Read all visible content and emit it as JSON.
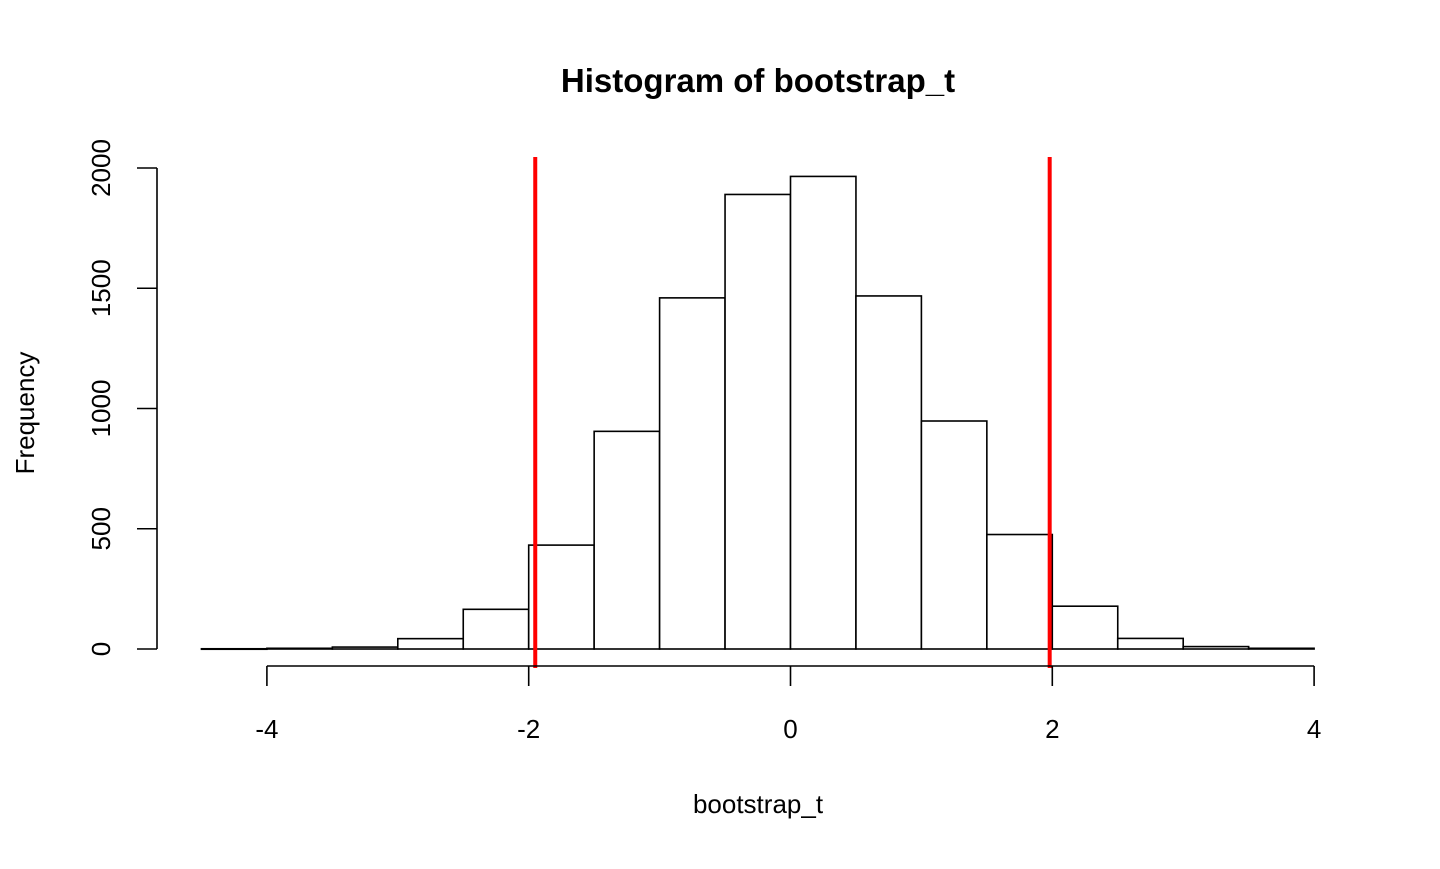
{
  "chart_data": {
    "type": "histogram",
    "title": "Histogram of bootstrap_t",
    "xlabel": "bootstrap_t",
    "ylabel": "Frequency",
    "xlim": [
      -4.5,
      4
    ],
    "ylim": [
      0,
      2000
    ],
    "x_ticks": [
      -4,
      -2,
      0,
      2,
      4
    ],
    "x_tick_labels": [
      "-4",
      "-2",
      "0",
      "2",
      "4"
    ],
    "y_ticks": [
      0,
      500,
      1000,
      1500,
      2000
    ],
    "y_tick_labels": [
      "0",
      "500",
      "1000",
      "1500",
      "2000"
    ],
    "bins": [
      {
        "x0": -4.5,
        "x1": -4.0,
        "count": 1
      },
      {
        "x0": -4.0,
        "x1": -3.5,
        "count": 3
      },
      {
        "x0": -3.5,
        "x1": -3.0,
        "count": 8
      },
      {
        "x0": -3.0,
        "x1": -2.5,
        "count": 43
      },
      {
        "x0": -2.5,
        "x1": -2.0,
        "count": 165
      },
      {
        "x0": -2.0,
        "x1": -1.5,
        "count": 432
      },
      {
        "x0": -1.5,
        "x1": -1.0,
        "count": 905
      },
      {
        "x0": -1.0,
        "x1": -0.5,
        "count": 1460
      },
      {
        "x0": -0.5,
        "x1": 0.0,
        "count": 1890
      },
      {
        "x0": 0.0,
        "x1": 0.5,
        "count": 1965
      },
      {
        "x0": 0.5,
        "x1": 1.0,
        "count": 1468
      },
      {
        "x0": 1.0,
        "x1": 1.5,
        "count": 948
      },
      {
        "x0": 1.5,
        "x1": 2.0,
        "count": 476
      },
      {
        "x0": 2.0,
        "x1": 2.5,
        "count": 178
      },
      {
        "x0": 2.5,
        "x1": 3.0,
        "count": 44
      },
      {
        "x0": 3.0,
        "x1": 3.5,
        "count": 10
      },
      {
        "x0": 3.5,
        "x1": 4.0,
        "count": 3
      }
    ],
    "vertical_lines": [
      {
        "x": -1.95,
        "color": "#ff0000"
      },
      {
        "x": 1.98,
        "color": "#ff0000"
      }
    ],
    "bar_fill": "#ffffff",
    "bar_stroke": "#000000",
    "grid": false,
    "legend": "none"
  }
}
